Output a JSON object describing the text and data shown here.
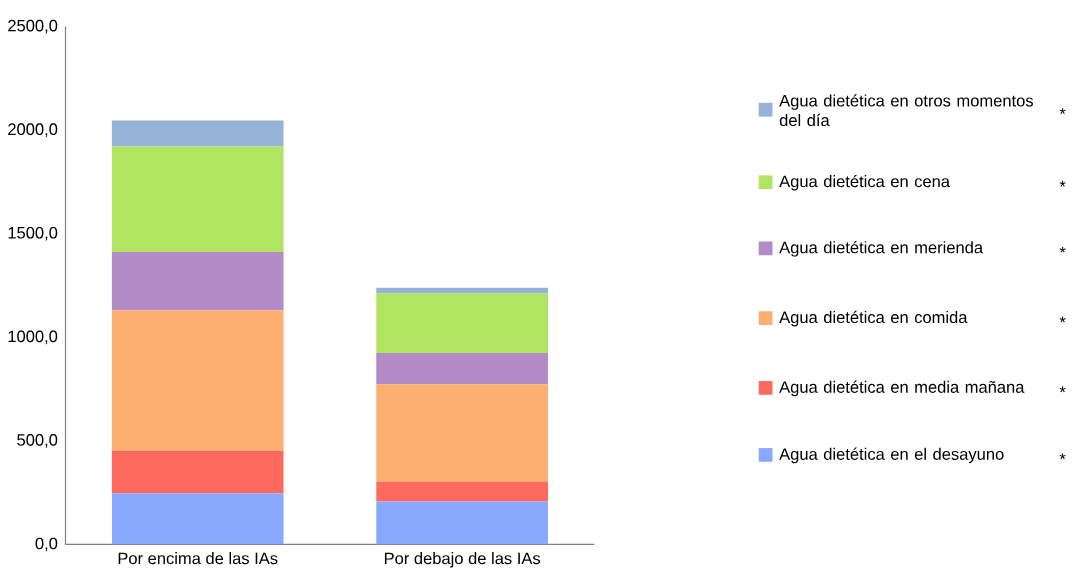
{
  "chart_data": {
    "type": "bar",
    "stacked": true,
    "categories": [
      "Por encima de las IAs",
      "Por debajo de las IAs"
    ],
    "series": [
      {
        "name": "Agua dietética en el desayuno",
        "color": "#8aa8ff",
        "values": [
          247,
          208
        ]
      },
      {
        "name": "Agua dietética en media mañana",
        "color": "#ff6a5e",
        "values": [
          205,
          96
        ]
      },
      {
        "name": "Agua dietética en comida",
        "color": "#fdae71",
        "values": [
          679,
          469
        ]
      },
      {
        "name": "Agua dietética en merienda",
        "color": "#b38bc6",
        "values": [
          281,
          151
        ]
      },
      {
        "name": "Agua dietética en cena",
        "color": "#b1e561",
        "values": [
          509,
          287
        ]
      },
      {
        "name": "Agua dietética en otros momentos del día",
        "color": "#95b3d7",
        "values": [
          126,
          28
        ]
      }
    ],
    "ylim": [
      0,
      2500
    ],
    "yticks": [
      {
        "value": 0,
        "label": "0,0"
      },
      {
        "value": 500,
        "label": "500,0"
      },
      {
        "value": 1000,
        "label": "1000,0"
      },
      {
        "value": 1500,
        "label": "1500,0"
      },
      {
        "value": 2000,
        "label": "2000,0"
      },
      {
        "value": 2500,
        "label": "2500,0"
      }
    ],
    "legend": "right",
    "grid": false,
    "annotations": [
      "*",
      "*",
      "*",
      "*",
      "*",
      "*"
    ]
  }
}
